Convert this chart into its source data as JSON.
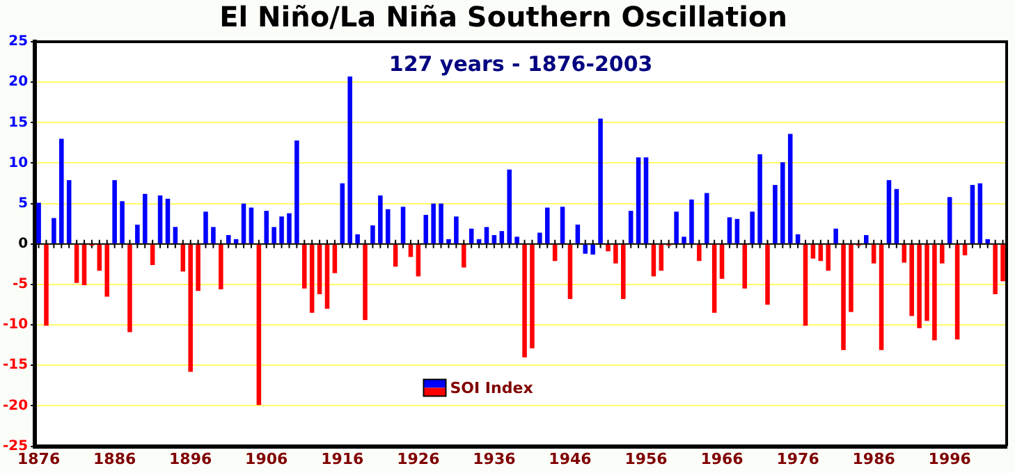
{
  "chart_data": {
    "type": "bar",
    "title": "El Niño/La Niña Southern Oscillation",
    "subtitle": "127 years - 1876-2003",
    "categories": [
      "1876",
      null,
      null,
      null,
      null,
      null,
      null,
      null,
      null,
      null,
      "1886",
      null,
      null,
      null,
      null,
      null,
      null,
      null,
      null,
      null,
      "1896",
      null,
      null,
      null,
      null,
      null,
      null,
      null,
      null,
      null,
      "1906",
      null,
      null,
      null,
      null,
      null,
      null,
      null,
      null,
      null,
      "1916",
      null,
      null,
      null,
      null,
      null,
      null,
      null,
      null,
      null,
      "1926",
      null,
      null,
      null,
      null,
      null,
      null,
      null,
      null,
      null,
      "1936",
      null,
      null,
      null,
      null,
      null,
      null,
      null,
      null,
      null,
      "1946",
      null,
      null,
      null,
      null,
      null,
      null,
      null,
      null,
      null,
      "1956",
      null,
      null,
      null,
      null,
      null,
      null,
      null,
      null,
      null,
      "1966",
      null,
      null,
      null,
      null,
      null,
      null,
      null,
      null,
      null,
      "1976",
      null,
      null,
      null,
      null,
      null,
      null,
      null,
      null,
      null,
      "1986",
      null,
      null,
      null,
      null,
      null,
      null,
      null,
      null,
      null,
      "1996",
      null,
      null,
      null,
      null,
      null,
      null,
      null
    ],
    "series": [
      {
        "name": "SOI Index",
        "values": [
          5.1,
          -10.1,
          3.2,
          13.0,
          7.9,
          -4.8,
          -5.1,
          -0.2,
          -3.3,
          -6.5,
          7.9,
          5.3,
          -10.9,
          2.4,
          6.2,
          -2.6,
          6.0,
          5.6,
          2.1,
          -3.4,
          -15.8,
          -5.8,
          4.0,
          2.1,
          -5.6,
          1.1,
          0.6,
          5.0,
          4.5,
          -19.9,
          4.1,
          2.1,
          3.4,
          3.8,
          12.8,
          -5.5,
          -8.5,
          -6.2,
          -8.0,
          -3.6,
          7.5,
          20.7,
          1.2,
          -9.4,
          2.3,
          6.0,
          4.3,
          -2.8,
          4.6,
          -1.6,
          -4.0,
          3.6,
          5.0,
          5.0,
          0.6,
          3.4,
          -2.9,
          1.9,
          0.6,
          2.1,
          1.1,
          1.6,
          9.2,
          0.9,
          -14.0,
          -12.9,
          1.4,
          4.5,
          -2.1,
          4.6,
          -6.8,
          2.4,
          -1.2,
          -1.3,
          15.5,
          -0.9,
          -2.4,
          -6.8,
          4.1,
          10.7,
          10.7,
          -4.0,
          -3.3,
          -0.2,
          4.0,
          0.9,
          5.5,
          -2.1,
          6.3,
          -8.5,
          -4.3,
          3.3,
          3.1,
          -5.5,
          4.0,
          11.1,
          -7.5,
          7.3,
          10.1,
          13.6,
          1.2,
          -10.1,
          -1.8,
          -2.1,
          -3.3,
          1.9,
          -13.1,
          -8.4,
          -0.2,
          1.1,
          -2.4,
          -13.1,
          7.9,
          6.8,
          -2.3,
          -8.9,
          -10.4,
          -9.5,
          -11.9,
          -2.4,
          5.8,
          -11.8,
          -1.4,
          7.3,
          7.5,
          0.6,
          -6.2,
          -4.6
        ],
        "colors": [
          "#0000ff",
          "#ff0000",
          "#0000ff",
          "#0000ff",
          "#0000ff",
          "#ff0000",
          "#ff0000",
          "#ff0000",
          "#ff0000",
          "#ff0000",
          "#0000ff",
          "#0000ff",
          "#ff0000",
          "#0000ff",
          "#0000ff",
          "#ff0000",
          "#0000ff",
          "#0000ff",
          "#0000ff",
          "#ff0000",
          "#ff0000",
          "#ff0000",
          "#0000ff",
          "#0000ff",
          "#ff0000",
          "#0000ff",
          "#0000ff",
          "#0000ff",
          "#0000ff",
          "#ff0000",
          "#0000ff",
          "#0000ff",
          "#0000ff",
          "#0000ff",
          "#0000ff",
          "#ff0000",
          "#ff0000",
          "#ff0000",
          "#ff0000",
          "#ff0000",
          "#0000ff",
          "#0000ff",
          "#0000ff",
          "#ff0000",
          "#0000ff",
          "#0000ff",
          "#0000ff",
          "#ff0000",
          "#0000ff",
          "#ff0000",
          "#ff0000",
          "#0000ff",
          "#0000ff",
          "#0000ff",
          "#0000ff",
          "#0000ff",
          "#ff0000",
          "#0000ff",
          "#0000ff",
          "#0000ff",
          "#0000ff",
          "#0000ff",
          "#0000ff",
          "#0000ff",
          "#ff0000",
          "#ff0000",
          "#0000ff",
          "#0000ff",
          "#ff0000",
          "#0000ff",
          "#ff0000",
          "#0000ff",
          "#0000ff",
          "#0000ff",
          "#0000ff",
          "#ff0000",
          "#ff0000",
          "#ff0000",
          "#0000ff",
          "#0000ff",
          "#0000ff",
          "#ff0000",
          "#ff0000",
          "#ff0000",
          "#0000ff",
          "#0000ff",
          "#0000ff",
          "#ff0000",
          "#0000ff",
          "#ff0000",
          "#ff0000",
          "#0000ff",
          "#0000ff",
          "#ff0000",
          "#0000ff",
          "#0000ff",
          "#ff0000",
          "#0000ff",
          "#0000ff",
          "#0000ff",
          "#0000ff",
          "#ff0000",
          "#ff0000",
          "#ff0000",
          "#ff0000",
          "#0000ff",
          "#ff0000",
          "#ff0000",
          "#ff0000",
          "#0000ff",
          "#ff0000",
          "#ff0000",
          "#0000ff",
          "#0000ff",
          "#ff0000",
          "#ff0000",
          "#ff0000",
          "#ff0000",
          "#ff0000",
          "#ff0000",
          "#0000ff",
          "#ff0000",
          "#ff0000",
          "#0000ff",
          "#0000ff",
          "#0000ff",
          "#ff0000",
          "#ff0000"
        ]
      }
    ],
    "ylim": [
      -25,
      25
    ],
    "yticks": [
      -25,
      -20,
      -15,
      -10,
      -5,
      0,
      5,
      10,
      15,
      20,
      25
    ],
    "grid": "y",
    "legend": "bottom left"
  }
}
